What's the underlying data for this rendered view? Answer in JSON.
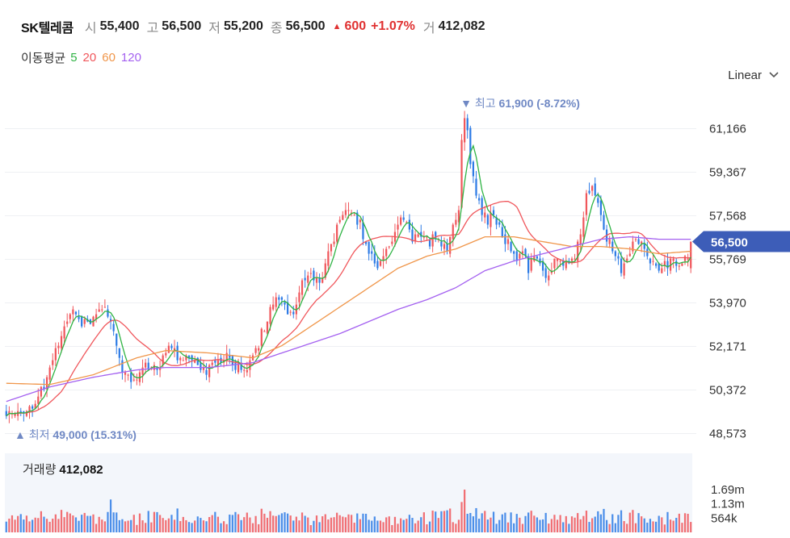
{
  "header": {
    "stock_name": "SK텔레콤",
    "open_label": "시",
    "open": "55,400",
    "high_label": "고",
    "high": "56,500",
    "low_label": "저",
    "low": "55,200",
    "close_label": "종",
    "close": "56,500",
    "change_icon": "triangle-up-icon",
    "change": "600",
    "change_pct": "+1.07%",
    "volume_label": "거",
    "volume": "412,082"
  },
  "moving_average": {
    "title": "이동평균",
    "periods": [
      {
        "label": "5",
        "color": "#2fb344"
      },
      {
        "label": "20",
        "color": "#f0565b"
      },
      {
        "label": "60",
        "color": "#f0964a"
      },
      {
        "label": "120",
        "color": "#a461f0"
      }
    ]
  },
  "scale_select": {
    "label": "Linear",
    "icon": "chevron-down-icon"
  },
  "colors": {
    "up": "#f0565b",
    "down": "#2d7be5",
    "last_price_tag": "#3d5db8",
    "peak_annotation": "#6f88c4",
    "volume_bg": "#f3f6fb"
  },
  "chart_data": {
    "type": "candlestick",
    "price_axis": {
      "ticks": [
        61166,
        59367,
        57568,
        55769,
        53970,
        52171,
        50372,
        48573
      ],
      "tick_labels": [
        "61,166",
        "59,367",
        "57,568",
        "55,769",
        "53,970",
        "52,171",
        "50,372",
        "48,573"
      ]
    },
    "last_price": {
      "value": 56500,
      "label": "56,500"
    },
    "period_high": {
      "value": 61900,
      "text": "최고",
      "value_label": "61,900",
      "pct_label": "(-8.72%)"
    },
    "period_low": {
      "value": 49000,
      "text": "최저",
      "value_label": "49,000",
      "pct_label": "(15.31%)"
    },
    "volume_axis": {
      "ticks": [
        1690000,
        1130000,
        564000
      ],
      "tick_labels": [
        "1.69m",
        "1.13m",
        "564k"
      ]
    },
    "volume_title": "거래량",
    "volume_value": "412,082",
    "anchors": [
      [
        0,
        49300
      ],
      [
        4,
        49400
      ],
      [
        8,
        49600
      ],
      [
        12,
        50300
      ],
      [
        15,
        51200
      ],
      [
        18,
        52300
      ],
      [
        21,
        53400
      ],
      [
        23,
        53600
      ],
      [
        26,
        53000
      ],
      [
        29,
        53200
      ],
      [
        32,
        53800
      ],
      [
        34,
        54000
      ],
      [
        36,
        53200
      ],
      [
        38,
        52000
      ],
      [
        40,
        51300
      ],
      [
        42,
        50800
      ],
      [
        44,
        50600
      ],
      [
        46,
        51000
      ],
      [
        48,
        51400
      ],
      [
        50,
        51300
      ],
      [
        52,
        51000
      ],
      [
        55,
        51800
      ],
      [
        57,
        52300
      ],
      [
        59,
        51800
      ],
      [
        62,
        51800
      ],
      [
        65,
        51500
      ],
      [
        68,
        51200
      ],
      [
        71,
        51400
      ],
      [
        74,
        51700
      ],
      [
        77,
        51700
      ],
      [
        79,
        51400
      ],
      [
        82,
        51300
      ],
      [
        84,
        51400
      ],
      [
        86,
        52000
      ],
      [
        88,
        52700
      ],
      [
        90,
        53300
      ],
      [
        92,
        53900
      ],
      [
        94,
        54200
      ],
      [
        96,
        53900
      ],
      [
        98,
        53400
      ],
      [
        100,
        54100
      ],
      [
        102,
        54800
      ],
      [
        104,
        55200
      ],
      [
        106,
        55000
      ],
      [
        108,
        54900
      ],
      [
        110,
        55600
      ],
      [
        112,
        56300
      ],
      [
        114,
        57000
      ],
      [
        116,
        57500
      ],
      [
        118,
        57700
      ],
      [
        120,
        57600
      ],
      [
        122,
        57200
      ],
      [
        124,
        56500
      ],
      [
        126,
        55800
      ],
      [
        128,
        55400
      ],
      [
        130,
        55900
      ],
      [
        132,
        56400
      ],
      [
        134,
        57000
      ],
      [
        136,
        57300
      ],
      [
        138,
        57100
      ],
      [
        140,
        56500
      ],
      [
        142,
        56700
      ],
      [
        144,
        56900
      ],
      [
        146,
        56500
      ],
      [
        148,
        56600
      ],
      [
        150,
        56200
      ],
      [
        152,
        56300
      ],
      [
        154,
        57000
      ],
      [
        156,
        58000
      ],
      [
        157,
        60500
      ],
      [
        158,
        61500
      ],
      [
        159,
        61000
      ],
      [
        160,
        59700
      ],
      [
        162,
        58500
      ],
      [
        164,
        57800
      ],
      [
        166,
        57400
      ],
      [
        168,
        57700
      ],
      [
        170,
        57200
      ],
      [
        172,
        56600
      ],
      [
        174,
        56100
      ],
      [
        176,
        55900
      ],
      [
        178,
        55900
      ],
      [
        180,
        55400
      ],
      [
        182,
        55700
      ],
      [
        184,
        55400
      ],
      [
        186,
        55100
      ],
      [
        188,
        55300
      ],
      [
        190,
        55800
      ],
      [
        192,
        55600
      ],
      [
        194,
        55500
      ],
      [
        196,
        56000
      ],
      [
        198,
        56700
      ],
      [
        200,
        58400
      ],
      [
        202,
        58900
      ],
      [
        204,
        58000
      ],
      [
        206,
        57000
      ],
      [
        208,
        56400
      ],
      [
        210,
        55800
      ],
      [
        212,
        55400
      ],
      [
        214,
        55800
      ],
      [
        216,
        56300
      ],
      [
        218,
        56500
      ],
      [
        220,
        56100
      ],
      [
        222,
        55800
      ],
      [
        224,
        55700
      ],
      [
        226,
        55400
      ],
      [
        228,
        55600
      ],
      [
        230,
        55600
      ],
      [
        232,
        55300
      ],
      [
        234,
        55800
      ],
      [
        236,
        56000
      ]
    ],
    "moving_averages": [
      {
        "period": 60,
        "points": [
          [
            0,
            50650
          ],
          [
            15,
            50600
          ],
          [
            30,
            51000
          ],
          [
            45,
            51700
          ],
          [
            55,
            52000
          ],
          [
            70,
            51900
          ],
          [
            85,
            51700
          ],
          [
            95,
            52200
          ],
          [
            105,
            53000
          ],
          [
            115,
            53800
          ],
          [
            125,
            54600
          ],
          [
            135,
            55400
          ],
          [
            145,
            55900
          ],
          [
            155,
            56200
          ],
          [
            165,
            56700
          ],
          [
            175,
            56700
          ],
          [
            185,
            56500
          ],
          [
            195,
            56300
          ],
          [
            205,
            56300
          ],
          [
            215,
            56200
          ],
          [
            225,
            56000
          ],
          [
            236,
            56100
          ]
        ]
      },
      {
        "period": 120,
        "points": [
          [
            0,
            49900
          ],
          [
            15,
            50500
          ],
          [
            30,
            50900
          ],
          [
            45,
            51200
          ],
          [
            55,
            51300
          ],
          [
            70,
            51300
          ],
          [
            85,
            51500
          ],
          [
            95,
            51900
          ],
          [
            105,
            52300
          ],
          [
            115,
            52700
          ],
          [
            125,
            53200
          ],
          [
            135,
            53700
          ],
          [
            145,
            54100
          ],
          [
            155,
            54600
          ],
          [
            165,
            55300
          ],
          [
            175,
            55700
          ],
          [
            185,
            56000
          ],
          [
            195,
            56300
          ],
          [
            205,
            56600
          ],
          [
            215,
            56700
          ],
          [
            225,
            56600
          ],
          [
            236,
            56600
          ]
        ]
      }
    ]
  }
}
